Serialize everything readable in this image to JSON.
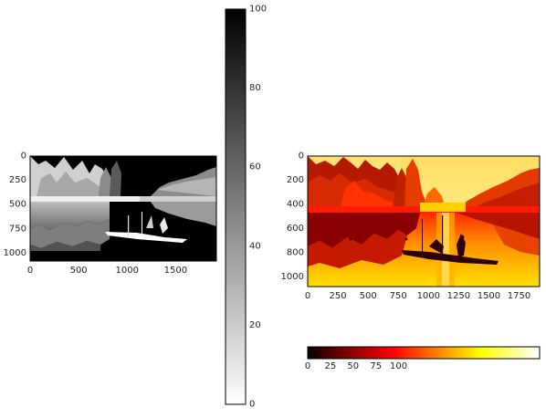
{
  "chart_data": [
    {
      "type": "heatmap",
      "colormap": "gray_r",
      "xlim": [
        0,
        1920
      ],
      "ylim": [
        1080,
        0
      ],
      "x_ticks": [
        0,
        500,
        1000,
        1500
      ],
      "y_ticks": [
        0,
        250,
        500,
        750,
        1000
      ],
      "colorbar": {
        "orientation": "vertical",
        "range": [
          0,
          100
        ],
        "ticks": [
          0,
          20,
          40,
          60,
          80,
          100
        ]
      }
    },
    {
      "type": "heatmap",
      "colormap": "hot",
      "xlim": [
        0,
        1920
      ],
      "ylim": [
        1080,
        0
      ],
      "x_ticks": [
        0,
        250,
        500,
        750,
        1000,
        1250,
        1500,
        1750
      ],
      "y_ticks": [
        0,
        200,
        400,
        600,
        800,
        1000
      ],
      "colorbar": {
        "orientation": "horizontal",
        "range": [
          0,
          255
        ],
        "ticks": [
          0,
          25,
          50,
          75,
          100
        ]
      }
    }
  ]
}
